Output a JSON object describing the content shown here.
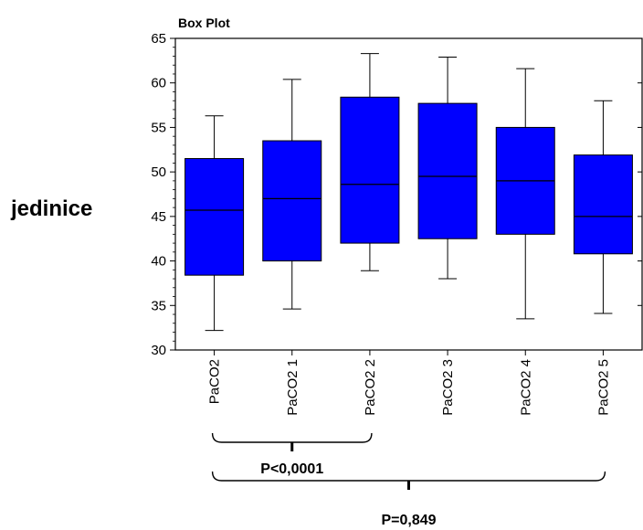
{
  "chart_data": {
    "type": "box",
    "title": "Box Plot",
    "ylabel": "jedinice",
    "xlabel": "",
    "ylim": [
      30,
      65
    ],
    "yticks": [
      30,
      35,
      40,
      45,
      50,
      55,
      60,
      65
    ],
    "box_color": "#0000FF",
    "grid": false,
    "categories": [
      "PaCO2",
      "PaCO2 1",
      "PaCO2 2",
      "PaCO2 3",
      "PaCO2 4",
      "PaCO2 5"
    ],
    "boxes": [
      {
        "min": 32.2,
        "q1": 38.4,
        "median": 45.7,
        "q3": 51.5,
        "max": 56.3
      },
      {
        "min": 34.6,
        "q1": 40.0,
        "median": 47.0,
        "q3": 53.5,
        "max": 60.4
      },
      {
        "min": 38.9,
        "q1": 42.0,
        "median": 48.6,
        "q3": 58.4,
        "max": 63.3
      },
      {
        "min": 38.0,
        "q1": 42.5,
        "median": 49.5,
        "q3": 57.7,
        "max": 62.9
      },
      {
        "min": 33.5,
        "q1": 43.0,
        "median": 49.0,
        "q3": 55.0,
        "max": 61.6
      },
      {
        "min": 34.1,
        "q1": 40.8,
        "median": 45.0,
        "q3": 51.9,
        "max": 58.0
      }
    ],
    "annotations": [
      {
        "text": "P<0,0001",
        "spans": [
          "PaCO2",
          "PaCO2 2"
        ]
      },
      {
        "text": "P=0,849",
        "spans": [
          "PaCO2",
          "PaCO2 5"
        ]
      }
    ]
  }
}
